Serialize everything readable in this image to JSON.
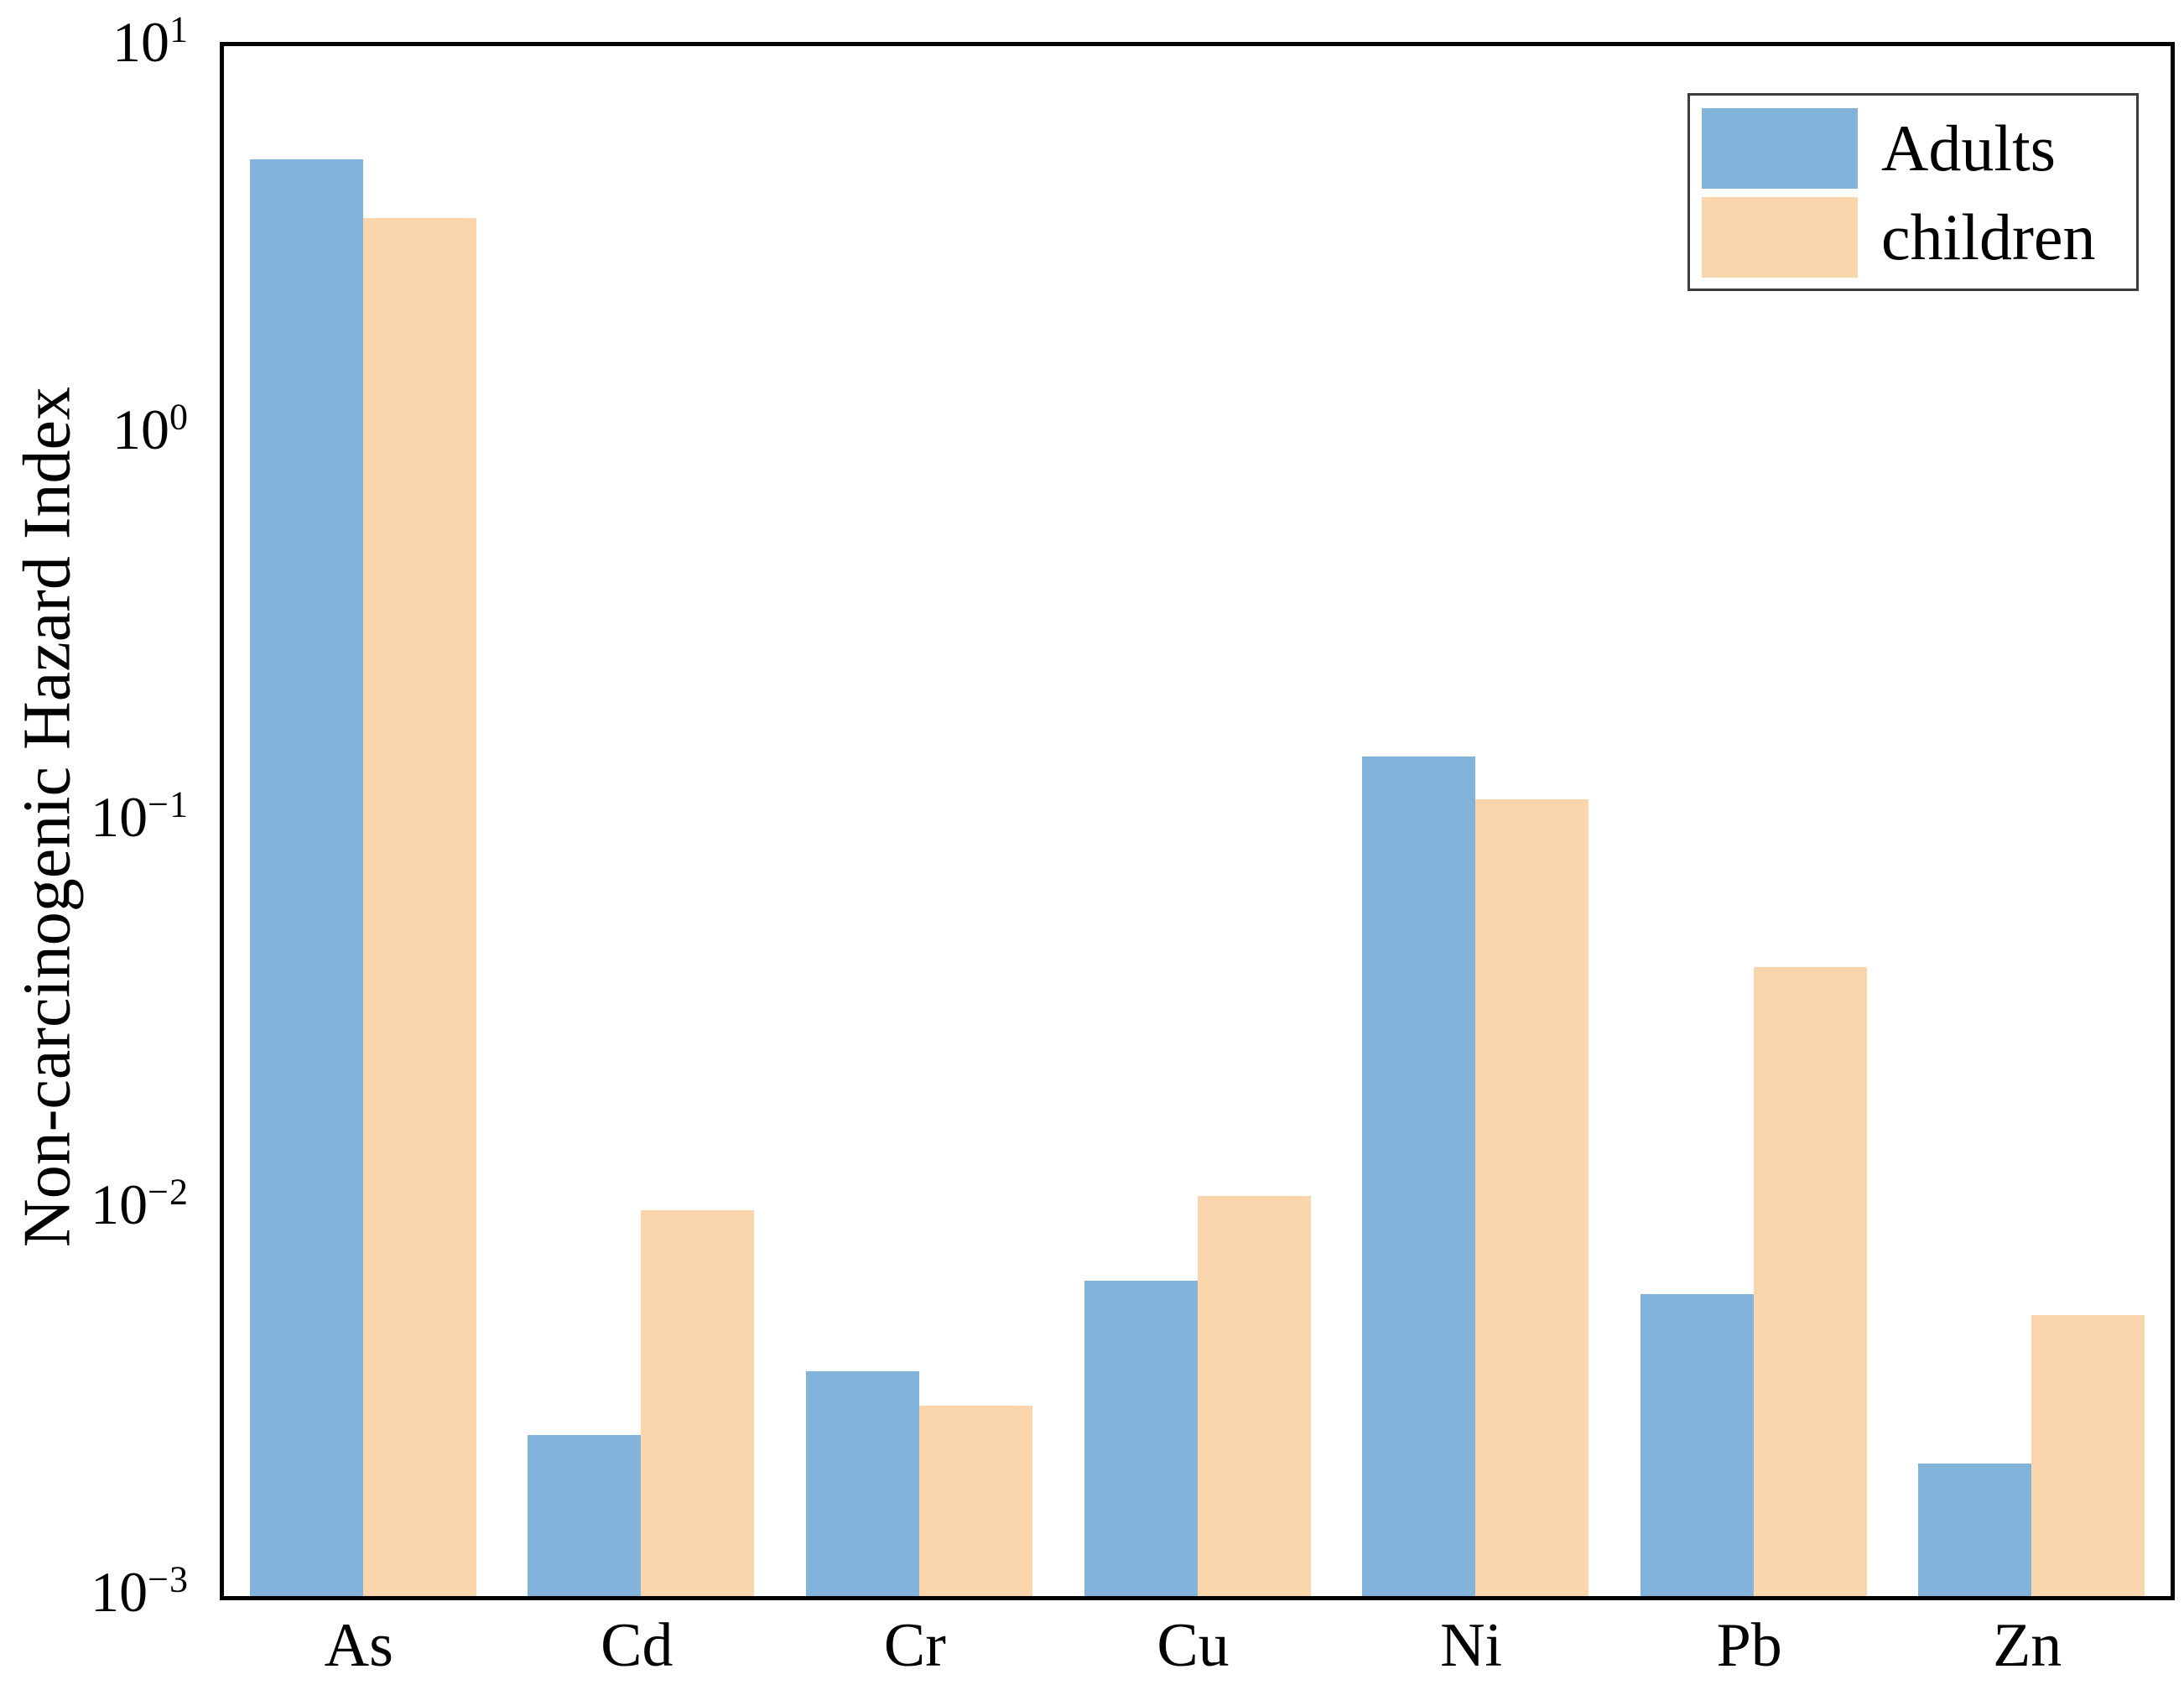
{
  "figure": {
    "background_color": "#ffffff",
    "axis_line_color": "#000000",
    "legend_border_color": "#3c3c3c"
  },
  "chart_data": {
    "type": "bar",
    "title": "",
    "xlabel": "",
    "ylabel": "Non-carcinogenic Hazard Index",
    "y_scale": "log",
    "ylim": [
      0.001,
      10
    ],
    "grid": false,
    "legend_position": "upper right",
    "categories": [
      "As",
      "Cd",
      "Cr",
      "Cu",
      "Ni",
      "Pb",
      "Zn"
    ],
    "series": [
      {
        "name": "Adults",
        "color": "#82b3da",
        "values": [
          5.1,
          0.0026,
          0.0038,
          0.0065,
          0.147,
          0.006,
          0.0022
        ]
      },
      {
        "name": "children",
        "color": "#fbd5ac",
        "values": [
          3.6,
          0.0099,
          0.0031,
          0.0108,
          0.114,
          0.042,
          0.0053
        ]
      }
    ],
    "y_ticks": [
      {
        "base": "10",
        "exp": "1",
        "value": 10
      },
      {
        "base": "10",
        "exp": "0",
        "value": 1
      },
      {
        "base": "10",
        "exp": "−1",
        "value": 0.1
      },
      {
        "base": "10",
        "exp": "−2",
        "value": 0.01
      },
      {
        "base": "10",
        "exp": "−3",
        "value": 0.001
      }
    ]
  }
}
